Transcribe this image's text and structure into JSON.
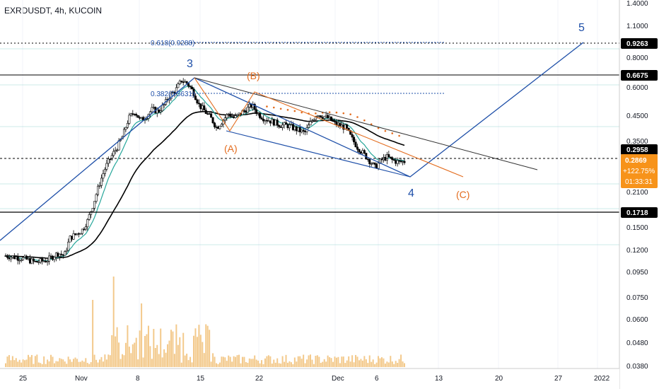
{
  "header": {
    "symbol": "EXRDUSDT, 4h, KUCOIN"
  },
  "chart_data": {
    "type": "candlestick",
    "symbol": "EXRDUSDT",
    "interval": "4h",
    "exchange": "KUCOIN",
    "y_scale": "log",
    "y_ticks": [
      "1.4000",
      "1.1000",
      "0.8000",
      "0.6000",
      "0.4500",
      "0.3500",
      "0.2100",
      "0.1500",
      "0.1200",
      "0.0950",
      "0.0750",
      "0.0600",
      "0.0480",
      "0.0380"
    ],
    "x_ticks": [
      "25",
      "Nov",
      "8",
      "15",
      "22",
      "Dec",
      "6",
      "13",
      "20",
      "27",
      "2022"
    ],
    "price_tags": [
      {
        "label": "0.9263",
        "color": "#000000"
      },
      {
        "label": "0.6675",
        "color": "#000000"
      },
      {
        "label": "0.2958",
        "color": "#000000"
      },
      {
        "label": "0.1718",
        "color": "#000000"
      }
    ],
    "last_price": {
      "value": "0.2869",
      "change": "+122.75%",
      "countdown": "01:33:31",
      "color": "#f7931a"
    },
    "fib_labels": [
      "0.618(0.9288)",
      "0.382(0.5631)"
    ],
    "wave_labels": [
      {
        "text": "3",
        "color": "#1e4fa8"
      },
      {
        "text": "(B)",
        "color": "#e36c1e"
      },
      {
        "text": "(A)",
        "color": "#e36c1e"
      },
      {
        "text": "4",
        "color": "#1e4fa8"
      },
      {
        "text": "(C)",
        "color": "#e36c1e"
      },
      {
        "text": "5",
        "color": "#1e4fa8"
      }
    ],
    "horizontal_levels": [
      0.9263,
      0.6675,
      0.2958,
      0.1718
    ],
    "path_close": [
      0.113,
      0.112,
      0.111,
      0.11,
      0.108,
      0.106,
      0.107,
      0.108,
      0.112,
      0.116,
      0.113,
      0.135,
      0.14,
      0.145,
      0.16,
      0.19,
      0.23,
      0.27,
      0.3,
      0.33,
      0.37,
      0.44,
      0.47,
      0.43,
      0.45,
      0.48,
      0.47,
      0.5,
      0.55,
      0.58,
      0.64,
      0.62,
      0.57,
      0.5,
      0.47,
      0.44,
      0.4,
      0.43,
      0.46,
      0.44,
      0.46,
      0.48,
      0.5,
      0.46,
      0.44,
      0.43,
      0.42,
      0.41,
      0.41,
      0.4,
      0.39,
      0.38,
      0.42,
      0.46,
      0.45,
      0.44,
      0.42,
      0.41,
      0.4,
      0.36,
      0.33,
      0.31,
      0.29,
      0.27,
      0.29,
      0.3,
      0.29,
      0.285,
      0.2869
    ],
    "colors": {
      "up": "#000000",
      "down": "#000000",
      "ema_fast": "#26a69a",
      "ema_slow": "#000000",
      "wave": "#1e4fa8",
      "abc": "#e36c1e",
      "volume": "#f3c98b"
    }
  }
}
